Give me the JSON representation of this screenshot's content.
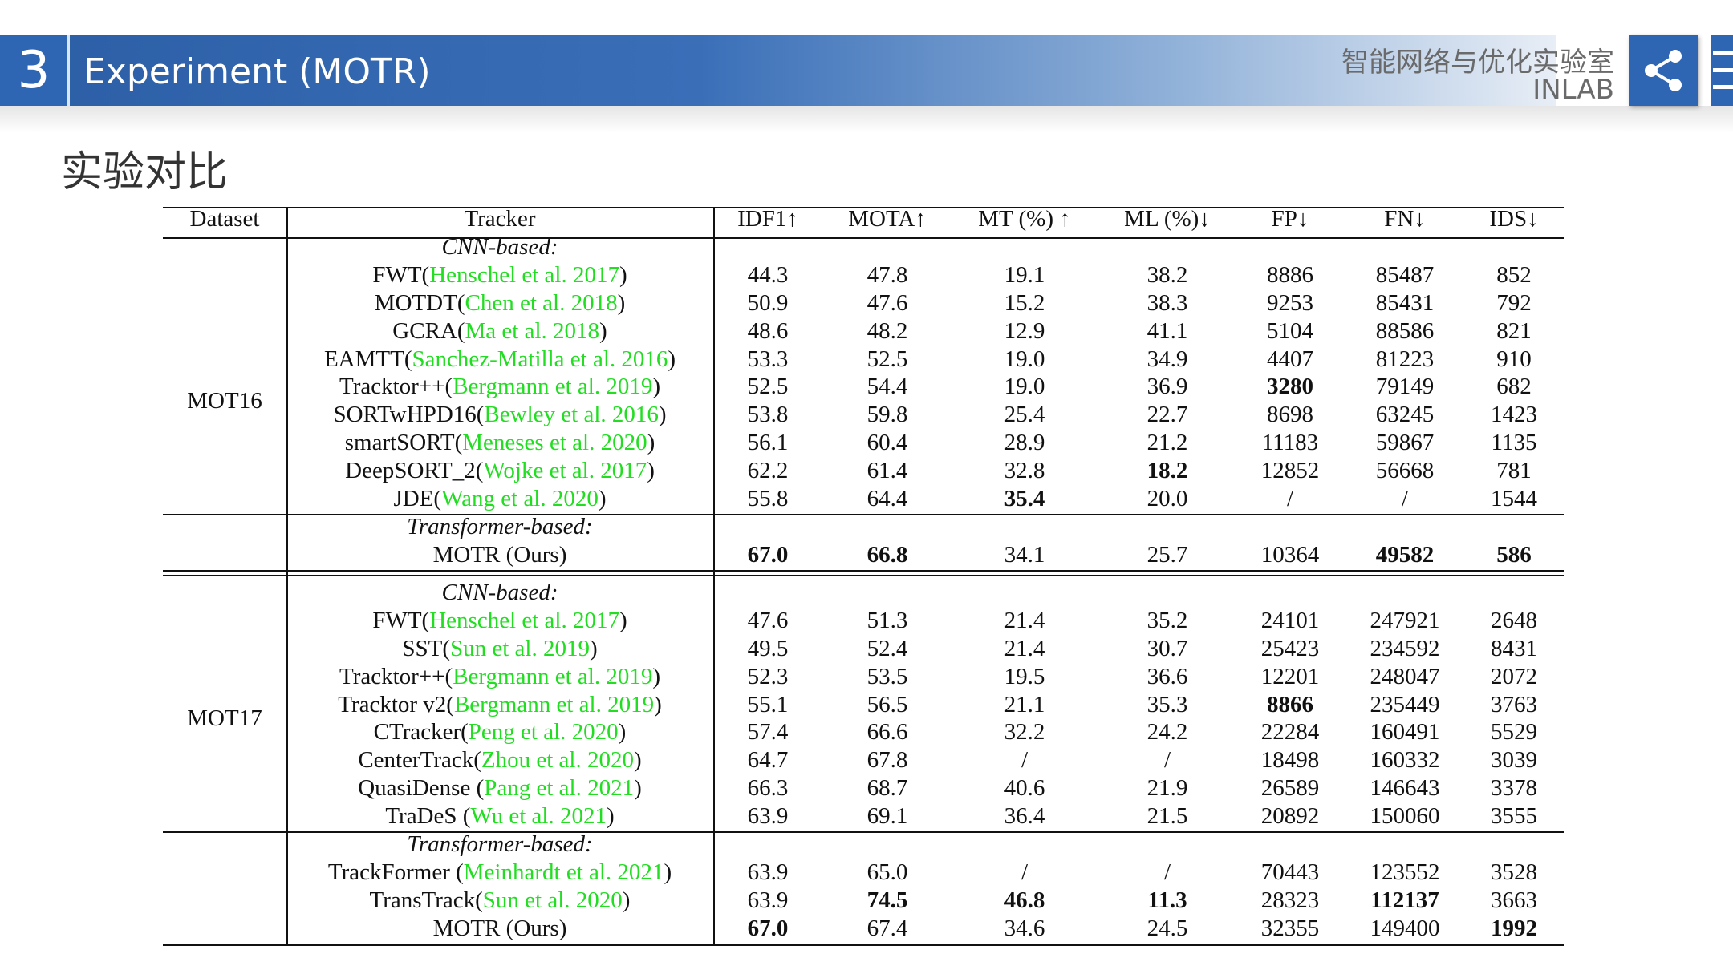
{
  "header": {
    "section_number": "3",
    "title": "Experiment (MOTR)",
    "lab_name": "智能网络与优化实验室",
    "lab_abbr": "INLAB"
  },
  "page_title": "实验对比",
  "table": {
    "columns": [
      "Dataset",
      "Tracker",
      "IDF1↑",
      "MOTA↑",
      "MT (%) ↑",
      "ML (%)↓",
      "FP↓",
      "FN↓",
      "IDS↓"
    ],
    "group_labels": {
      "cnn": "CNN-based:",
      "transformer": "Transformer-based:"
    },
    "datasets": [
      "MOT16",
      "MOT17"
    ],
    "mot16": {
      "cnn_rows": [
        {
          "name": "FWT(",
          "cite": "Henschel et al. 2017",
          "close": ")",
          "values": [
            "44.3",
            "47.8",
            "19.1",
            "38.2",
            "8886",
            "85487",
            "852"
          ],
          "bold": []
        },
        {
          "name": "MOTDT(",
          "cite": "Chen et al. 2018",
          "close": ")",
          "values": [
            "50.9",
            "47.6",
            "15.2",
            "38.3",
            "9253",
            "85431",
            "792"
          ],
          "bold": []
        },
        {
          "name": "GCRA(",
          "cite": "Ma et al. 2018",
          "close": ")",
          "values": [
            "48.6",
            "48.2",
            "12.9",
            "41.1",
            "5104",
            "88586",
            "821"
          ],
          "bold": []
        },
        {
          "name": "EAMTT(",
          "cite": "Sanchez-Matilla et al. 2016",
          "close": ")",
          "values": [
            "53.3",
            "52.5",
            "19.0",
            "34.9",
            "4407",
            "81223",
            "910"
          ],
          "bold": []
        },
        {
          "name": "Tracktor++(",
          "cite": "Bergmann et al. 2019",
          "close": ")",
          "values": [
            "52.5",
            "54.4",
            "19.0",
            "36.9",
            "3280",
            "79149",
            "682"
          ],
          "bold": [
            4
          ]
        },
        {
          "name": "SORTwHPD16(",
          "cite": "Bewley et al. 2016",
          "close": ")",
          "values": [
            "53.8",
            "59.8",
            "25.4",
            "22.7",
            "8698",
            "63245",
            "1423"
          ],
          "bold": []
        },
        {
          "name": "smartSORT(",
          "cite": "Meneses et al. 2020",
          "close": ")",
          "values": [
            "56.1",
            "60.4",
            "28.9",
            "21.2",
            "11183",
            "59867",
            "1135"
          ],
          "bold": []
        },
        {
          "name": "DeepSORT_2(",
          "cite": "Wojke et al. 2017",
          "close": ")",
          "values": [
            "62.2",
            "61.4",
            "32.8",
            "18.2",
            "12852",
            "56668",
            "781"
          ],
          "bold": [
            3
          ]
        },
        {
          "name": "JDE(",
          "cite": "Wang et al. 2020",
          "close": ")",
          "values": [
            "55.8",
            "64.4",
            "35.4",
            "20.0",
            "/",
            "/",
            "1544"
          ],
          "bold": [
            2
          ]
        }
      ],
      "transformer_rows": [
        {
          "name": "MOTR (Ours)",
          "cite": "",
          "close": "",
          "values": [
            "67.0",
            "66.8",
            "34.1",
            "25.7",
            "10364",
            "49582",
            "586"
          ],
          "bold": [
            0,
            1,
            5,
            6
          ]
        }
      ]
    },
    "mot17": {
      "cnn_rows": [
        {
          "name": "FWT(",
          "cite": "Henschel et al. 2017",
          "close": ")",
          "values": [
            "47.6",
            "51.3",
            "21.4",
            "35.2",
            "24101",
            "247921",
            "2648"
          ],
          "bold": []
        },
        {
          "name": "SST(",
          "cite": "Sun et al. 2019",
          "close": ")",
          "values": [
            "49.5",
            "52.4",
            "21.4",
            "30.7",
            "25423",
            "234592",
            "8431"
          ],
          "bold": []
        },
        {
          "name": "Tracktor++(",
          "cite": "Bergmann et al. 2019",
          "close": ")",
          "values": [
            "52.3",
            "53.5",
            "19.5",
            "36.6",
            "12201",
            "248047",
            "2072"
          ],
          "bold": []
        },
        {
          "name": "Tracktor v2(",
          "cite": "Bergmann et al. 2019",
          "close": ")",
          "values": [
            "55.1",
            "56.5",
            "21.1",
            "35.3",
            "8866",
            "235449",
            "3763"
          ],
          "bold": [
            4
          ]
        },
        {
          "name": "CTracker(",
          "cite": "Peng et al. 2020",
          "close": ")",
          "values": [
            "57.4",
            "66.6",
            "32.2",
            "24.2",
            "22284",
            "160491",
            "5529"
          ],
          "bold": []
        },
        {
          "name": "CenterTrack(",
          "cite": "Zhou et al. 2020",
          "close": ")",
          "values": [
            "64.7",
            "67.8",
            "/",
            "/",
            "18498",
            "160332",
            "3039"
          ],
          "bold": []
        },
        {
          "name": "QuasiDense (",
          "cite": "Pang et al. 2021",
          "close": ")",
          "values": [
            "66.3",
            "68.7",
            "40.6",
            "21.9",
            "26589",
            "146643",
            "3378"
          ],
          "bold": []
        },
        {
          "name": "TraDeS (",
          "cite": "Wu et al. 2021",
          "close": ")",
          "values": [
            "63.9",
            "69.1",
            "36.4",
            "21.5",
            "20892",
            "150060",
            "3555"
          ],
          "bold": []
        }
      ],
      "transformer_rows": [
        {
          "name": "TrackFormer (",
          "cite": "Meinhardt et al. 2021",
          "close": ")",
          "values": [
            "63.9",
            "65.0",
            "/",
            "/",
            "70443",
            "123552",
            "3528"
          ],
          "bold": []
        },
        {
          "name": "TransTrack(",
          "cite": "Sun et al. 2020",
          "close": ")",
          "values": [
            "63.9",
            "74.5",
            "46.8",
            "11.3",
            "28323",
            "112137",
            "3663"
          ],
          "bold": [
            1,
            2,
            3,
            5
          ]
        },
        {
          "name": "MOTR (Ours)",
          "cite": "",
          "close": "",
          "values": [
            "67.0",
            "67.4",
            "34.6",
            "24.5",
            "32355",
            "149400",
            "1992"
          ],
          "bold": [
            0,
            6
          ]
        }
      ]
    }
  },
  "colors": {
    "header_blue": "#2f66b3",
    "citation_green": "#22dd22",
    "text": "#111111"
  },
  "icons": {
    "share": "share-icon",
    "menu": "menu-icon"
  }
}
